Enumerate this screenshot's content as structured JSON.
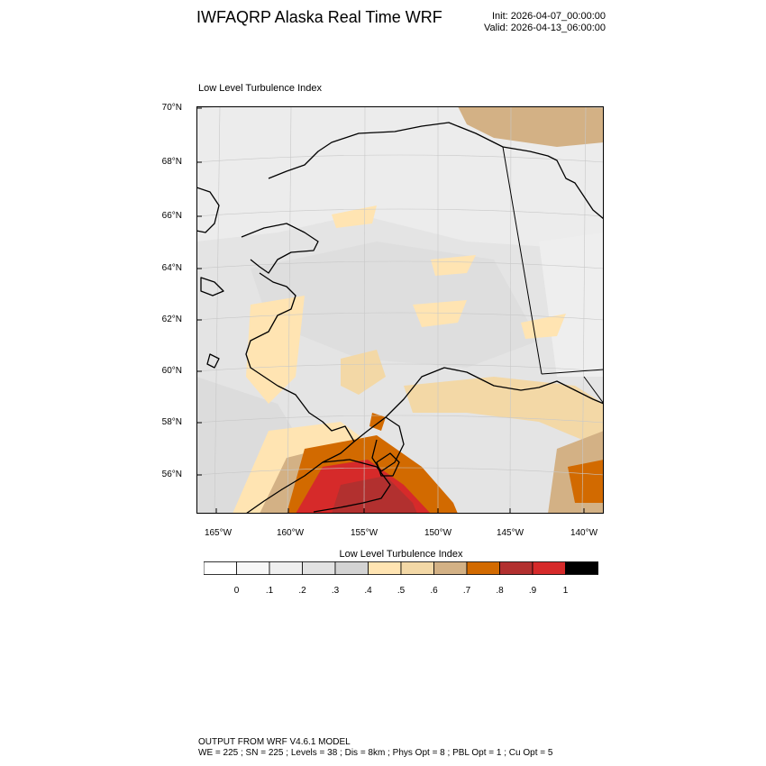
{
  "header": {
    "title": "IWFAQRP Alaska Real Time WRF",
    "init": "Init: 2026-04-07_00:00:00",
    "valid": "Valid: 2026-04-13_06:00:00"
  },
  "map": {
    "subtitle": "Low Level Turbulence Index",
    "lat_labels": [
      "70°N",
      "68°N",
      "66°N",
      "64°N",
      "62°N",
      "60°N",
      "58°N",
      "56°N"
    ],
    "lon_labels": [
      "165°W",
      "160°W",
      "155°W",
      "150°W",
      "145°W",
      "140°W"
    ],
    "background_color": "#e6e6e6"
  },
  "colorbar": {
    "title": "Low Level Turbulence Index",
    "tick_labels": [
      "0",
      ".1",
      ".2",
      ".3",
      ".4",
      ".5",
      ".6",
      ".7",
      ".8",
      ".9",
      "1"
    ],
    "colors": [
      "#ffffff",
      "#f7f7f7",
      "#efefef",
      "#e2e2e2",
      "#d3d3d3",
      "#ffe4b2",
      "#f3d8a6",
      "#d3b185",
      "#d26a00",
      "#b2302f",
      "#d62a2a",
      "#000000"
    ]
  },
  "footer": {
    "line1": "OUTPUT FROM WRF V4.6.1 MODEL",
    "line2": "WE = 225 ; SN = 225 ; Levels = 38 ; Dis = 8km ; Phys Opt = 8 ; PBL Opt = 1 ; Cu Opt = 5"
  }
}
